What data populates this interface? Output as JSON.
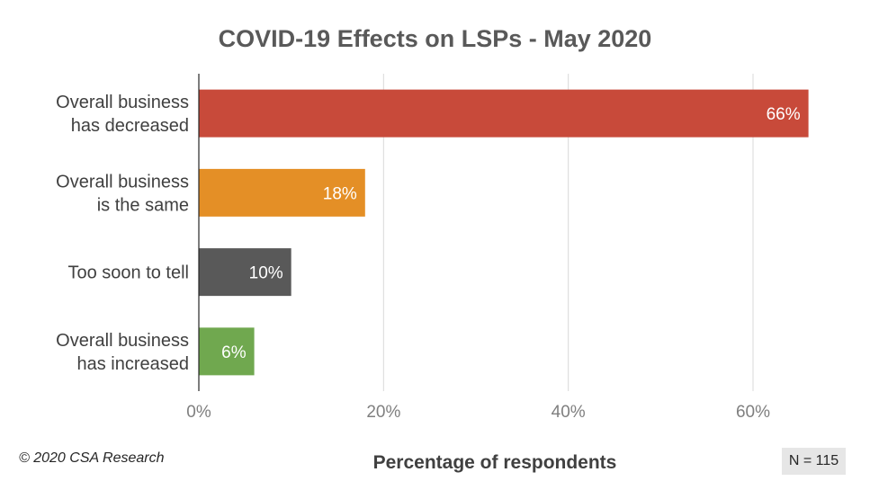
{
  "chart_data": {
    "type": "bar",
    "orientation": "horizontal",
    "title": "COVID-19 Effects on LSPs - May 2020",
    "xlabel": "Percentage of respondents",
    "ylabel": "",
    "xlim": [
      0,
      70
    ],
    "x_ticks": [
      0,
      20,
      40,
      60
    ],
    "x_tick_labels": [
      "0%",
      "20%",
      "40%",
      "60%"
    ],
    "grid": "vertical",
    "categories": [
      [
        "Overall business",
        "has decreased"
      ],
      [
        "Overall business",
        "is the same"
      ],
      [
        "Too soon to tell"
      ],
      [
        "Overall business",
        "has increased"
      ]
    ],
    "values": [
      66,
      18,
      10,
      6
    ],
    "data_labels": [
      "66%",
      "18%",
      "10%",
      "6%"
    ],
    "colors": [
      "#c84a3a",
      "#e48f26",
      "#595959",
      "#70a84f"
    ]
  },
  "footer": {
    "copyright": "© 2020 CSA Research",
    "sample_size": "N = 115"
  }
}
